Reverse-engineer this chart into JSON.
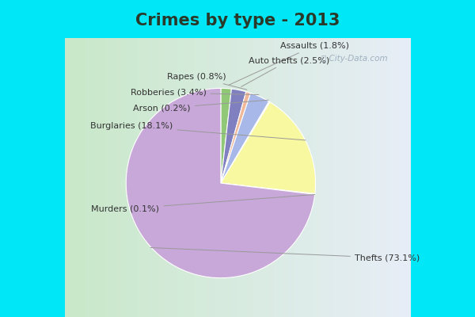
{
  "title": "Crimes by type - 2013",
  "wedge_names": [
    "Assaults",
    "Auto thefts",
    "Rapes",
    "Robberies",
    "Arson",
    "Burglaries",
    "Murders",
    "Thefts"
  ],
  "wedge_values": [
    1.8,
    2.5,
    0.8,
    3.4,
    0.2,
    18.1,
    0.1,
    73.1
  ],
  "wedge_colors": [
    "#90c878",
    "#8080c0",
    "#f0b898",
    "#a8b8e8",
    "#e8f0c0",
    "#f8f8a0",
    "#c0d8b8",
    "#c8a8d8"
  ],
  "wedge_label_texts": [
    "Assaults (1.8%)",
    "Auto thefts (2.5%)",
    "Rapes (0.8%)",
    "Robberies (3.4%)",
    "Arson (0.2%)",
    "Burglaries (18.1%)",
    "Murders (0.1%)",
    "Thefts (73.1%)"
  ],
  "top_bg": "#00e8f8",
  "chart_bg_left": "#c8e8c8",
  "chart_bg_right": "#e8eef8",
  "title_fontsize": 15,
  "label_fontsize": 8,
  "watermark": "ⓘ City-Data.com",
  "title_color": "#2a3a2a",
  "label_color": "#333333",
  "line_color": "#999999"
}
